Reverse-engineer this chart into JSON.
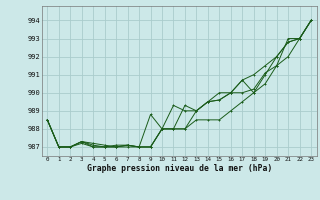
{
  "title": "Graphe pression niveau de la mer (hPa)",
  "bg_color": "#cce8e8",
  "grid_color": "#aacccc",
  "line_color": "#1a5c1a",
  "xlim": [
    -0.5,
    23.5
  ],
  "ylim": [
    986.5,
    994.8
  ],
  "yticks": [
    987,
    988,
    989,
    990,
    991,
    992,
    993,
    994
  ],
  "xticks": [
    0,
    1,
    2,
    3,
    4,
    5,
    6,
    7,
    8,
    9,
    10,
    11,
    12,
    13,
    14,
    15,
    16,
    17,
    18,
    19,
    20,
    21,
    22,
    23
  ],
  "series": [
    [
      988.5,
      987.0,
      987.0,
      987.2,
      987.0,
      987.0,
      987.0,
      987.0,
      987.0,
      988.8,
      988.0,
      988.0,
      989.3,
      989.0,
      989.5,
      989.6,
      990.0,
      990.7,
      990.0,
      991.0,
      992.0,
      992.8,
      993.0,
      994.0
    ],
    [
      988.5,
      987.0,
      987.0,
      987.3,
      987.0,
      987.0,
      987.1,
      987.1,
      987.0,
      987.0,
      988.0,
      988.0,
      988.0,
      989.0,
      989.5,
      990.0,
      990.0,
      990.0,
      990.2,
      991.1,
      991.5,
      993.0,
      993.0,
      994.0
    ],
    [
      988.5,
      987.0,
      987.0,
      987.3,
      987.2,
      987.1,
      987.0,
      987.1,
      987.0,
      987.0,
      988.0,
      988.0,
      988.0,
      988.5,
      988.5,
      988.5,
      989.0,
      989.5,
      990.0,
      990.5,
      991.5,
      992.0,
      993.0,
      994.0
    ],
    [
      988.5,
      987.0,
      987.0,
      987.3,
      987.1,
      987.0,
      987.0,
      987.1,
      987.0,
      987.0,
      988.0,
      989.3,
      989.0,
      989.0,
      989.5,
      989.6,
      990.0,
      990.7,
      991.0,
      991.5,
      992.0,
      992.8,
      993.0,
      994.0
    ]
  ],
  "figsize": [
    3.2,
    2.0
  ],
  "dpi": 100
}
